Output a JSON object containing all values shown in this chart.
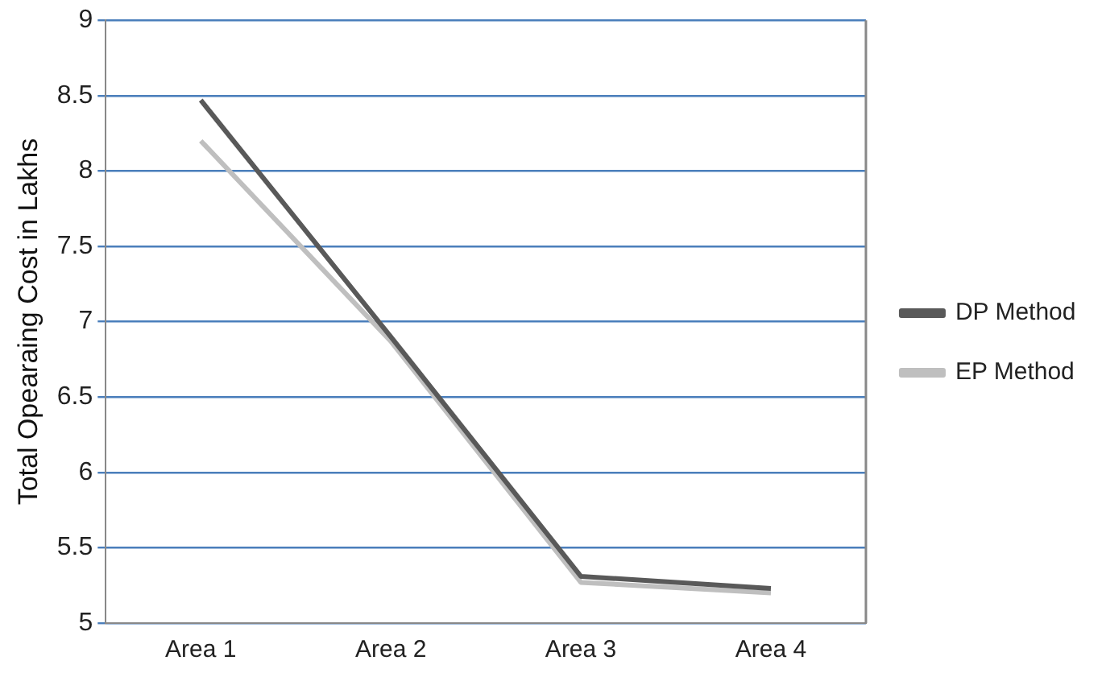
{
  "chart_data": {
    "type": "line",
    "ylabel": "Total Opearaing Cost in Lakhs",
    "categories": [
      "Area 1",
      "Area 2",
      "Area 3",
      "Area 4"
    ],
    "series": [
      {
        "name": "DP Method",
        "color": "#595959",
        "values": [
          8.47,
          6.9,
          5.31,
          5.23
        ]
      },
      {
        "name": "EP Method",
        "color": "#bfbfbf",
        "values": [
          8.2,
          6.87,
          5.27,
          5.2
        ]
      }
    ],
    "ylim": [
      5,
      9
    ],
    "yticks": [
      5,
      5.5,
      6,
      6.5,
      7,
      7.5,
      8,
      8.5,
      9
    ],
    "grid": "y",
    "legend": "right",
    "marker": "none",
    "line_style": "solid"
  }
}
